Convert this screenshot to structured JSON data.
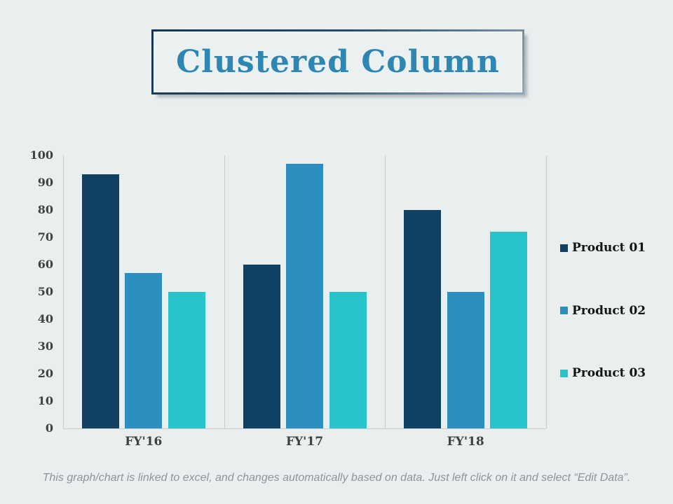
{
  "title": "Clustered Column",
  "footer": "This graph/chart is linked to excel, and changes automatically based on data. Just left click on it and select “Edit Data”.",
  "colors": {
    "background": "#E9EFEE",
    "title_text": "#2E87B2",
    "axis_text": "#3E4243",
    "legend_text": "#141414",
    "gridline": "#C7CDCD",
    "footer_text": "#8E9497"
  },
  "chart_data": {
    "type": "bar",
    "title": "Clustered Column",
    "categories": [
      "FY'16",
      "FY'17",
      "FY'18"
    ],
    "series": [
      {
        "name": "Product 01",
        "color": "#104062",
        "values": [
          93,
          60,
          80
        ]
      },
      {
        "name": "Product 02",
        "color": "#2B8FC0",
        "values": [
          57,
          97,
          50
        ]
      },
      {
        "name": "Product 03",
        "color": "#29C3CC",
        "values": [
          50,
          50,
          72
        ]
      }
    ],
    "xlabel": "",
    "ylabel": "",
    "ylim": [
      0,
      100
    ],
    "yticks": [
      0,
      10,
      20,
      30,
      40,
      50,
      60,
      70,
      80,
      90,
      100
    ],
    "grid": "vertical-category-separators",
    "legend_position": "right"
  }
}
